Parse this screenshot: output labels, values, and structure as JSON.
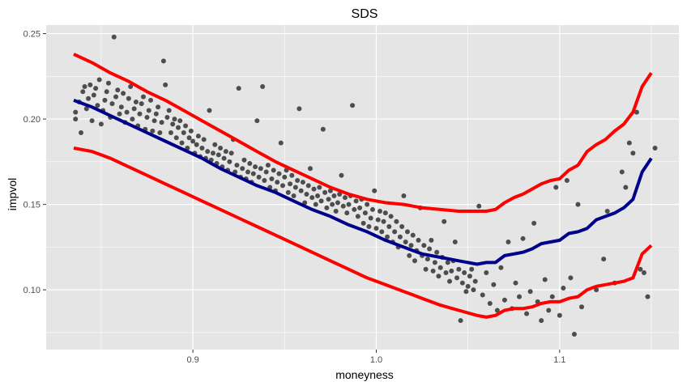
{
  "chart_data": {
    "type": "scatter",
    "title": "SDS",
    "xlabel": "moneyness",
    "ylabel": "impvol",
    "xlim": [
      0.82,
      1.165
    ],
    "ylim": [
      0.065,
      0.255
    ],
    "x_ticks": [
      0.9,
      1.0,
      1.1
    ],
    "x_tick_labels": [
      "0.9",
      "1.0",
      "1.1"
    ],
    "y_ticks": [
      0.1,
      0.15,
      0.2,
      0.25
    ],
    "y_tick_labels": [
      "0.10",
      "0.15",
      "0.20",
      "0.25"
    ],
    "grid": true,
    "legend": "none",
    "colors": {
      "panel": "#e5e5e5",
      "grid": "#ffffff",
      "points": "#4d4d4d",
      "fit": "#00008b",
      "band": "#ff0000"
    },
    "points": [
      [
        0.836,
        0.2
      ],
      [
        0.836,
        0.204
      ],
      [
        0.838,
        0.21
      ],
      [
        0.839,
        0.192
      ],
      [
        0.84,
        0.216
      ],
      [
        0.841,
        0.219
      ],
      [
        0.842,
        0.206
      ],
      [
        0.843,
        0.212
      ],
      [
        0.844,
        0.22
      ],
      [
        0.845,
        0.199
      ],
      [
        0.846,
        0.214
      ],
      [
        0.847,
        0.218
      ],
      [
        0.848,
        0.208
      ],
      [
        0.849,
        0.223
      ],
      [
        0.85,
        0.197
      ],
      [
        0.851,
        0.205
      ],
      [
        0.852,
        0.211
      ],
      [
        0.853,
        0.216
      ],
      [
        0.854,
        0.221
      ],
      [
        0.855,
        0.201
      ],
      [
        0.856,
        0.209
      ],
      [
        0.857,
        0.248
      ],
      [
        0.858,
        0.213
      ],
      [
        0.859,
        0.217
      ],
      [
        0.86,
        0.203
      ],
      [
        0.861,
        0.207
      ],
      [
        0.862,
        0.215
      ],
      [
        0.863,
        0.198
      ],
      [
        0.864,
        0.204
      ],
      [
        0.865,
        0.212
      ],
      [
        0.866,
        0.219
      ],
      [
        0.867,
        0.2
      ],
      [
        0.868,
        0.206
      ],
      [
        0.869,
        0.21
      ],
      [
        0.87,
        0.196
      ],
      [
        0.871,
        0.203
      ],
      [
        0.872,
        0.209
      ],
      [
        0.873,
        0.213
      ],
      [
        0.874,
        0.194
      ],
      [
        0.875,
        0.201
      ],
      [
        0.876,
        0.205
      ],
      [
        0.877,
        0.211
      ],
      [
        0.878,
        0.193
      ],
      [
        0.879,
        0.199
      ],
      [
        0.88,
        0.203
      ],
      [
        0.881,
        0.207
      ],
      [
        0.882,
        0.192
      ],
      [
        0.883,
        0.198
      ],
      [
        0.884,
        0.234
      ],
      [
        0.885,
        0.22
      ],
      [
        0.886,
        0.201
      ],
      [
        0.887,
        0.205
      ],
      [
        0.888,
        0.192
      ],
      [
        0.889,
        0.197
      ],
      [
        0.89,
        0.2
      ],
      [
        0.891,
        0.189
      ],
      [
        0.892,
        0.195
      ],
      [
        0.893,
        0.199
      ],
      [
        0.894,
        0.186
      ],
      [
        0.895,
        0.192
      ],
      [
        0.896,
        0.196
      ],
      [
        0.897,
        0.183
      ],
      [
        0.898,
        0.189
      ],
      [
        0.899,
        0.193
      ],
      [
        0.9,
        0.187
      ],
      [
        0.901,
        0.18
      ],
      [
        0.902,
        0.185
      ],
      [
        0.903,
        0.19
      ],
      [
        0.904,
        0.178
      ],
      [
        0.905,
        0.183
      ],
      [
        0.906,
        0.188
      ],
      [
        0.907,
        0.177
      ],
      [
        0.908,
        0.181
      ],
      [
        0.909,
        0.205
      ],
      [
        0.91,
        0.176
      ],
      [
        0.911,
        0.18
      ],
      [
        0.912,
        0.185
      ],
      [
        0.913,
        0.174
      ],
      [
        0.914,
        0.179
      ],
      [
        0.915,
        0.183
      ],
      [
        0.916,
        0.172
      ],
      [
        0.917,
        0.177
      ],
      [
        0.918,
        0.181
      ],
      [
        0.919,
        0.17
      ],
      [
        0.92,
        0.175
      ],
      [
        0.921,
        0.18
      ],
      [
        0.922,
        0.188
      ],
      [
        0.923,
        0.169
      ],
      [
        0.924,
        0.173
      ],
      [
        0.925,
        0.218
      ],
      [
        0.926,
        0.166
      ],
      [
        0.927,
        0.171
      ],
      [
        0.928,
        0.176
      ],
      [
        0.929,
        0.165
      ],
      [
        0.93,
        0.169
      ],
      [
        0.931,
        0.174
      ],
      [
        0.932,
        0.163
      ],
      [
        0.933,
        0.168
      ],
      [
        0.934,
        0.172
      ],
      [
        0.935,
        0.199
      ],
      [
        0.936,
        0.166
      ],
      [
        0.937,
        0.171
      ],
      [
        0.938,
        0.219
      ],
      [
        0.939,
        0.164
      ],
      [
        0.94,
        0.169
      ],
      [
        0.941,
        0.173
      ],
      [
        0.942,
        0.16
      ],
      [
        0.943,
        0.165
      ],
      [
        0.944,
        0.17
      ],
      [
        0.945,
        0.158
      ],
      [
        0.946,
        0.163
      ],
      [
        0.947,
        0.168
      ],
      [
        0.948,
        0.186
      ],
      [
        0.949,
        0.161
      ],
      [
        0.95,
        0.166
      ],
      [
        0.951,
        0.17
      ],
      [
        0.952,
        0.157
      ],
      [
        0.953,
        0.162
      ],
      [
        0.954,
        0.167
      ],
      [
        0.955,
        0.155
      ],
      [
        0.956,
        0.16
      ],
      [
        0.957,
        0.164
      ],
      [
        0.958,
        0.206
      ],
      [
        0.959,
        0.158
      ],
      [
        0.96,
        0.163
      ],
      [
        0.961,
        0.151
      ],
      [
        0.962,
        0.156
      ],
      [
        0.963,
        0.161
      ],
      [
        0.964,
        0.171
      ],
      [
        0.965,
        0.154
      ],
      [
        0.966,
        0.159
      ],
      [
        0.967,
        0.15
      ],
      [
        0.968,
        0.155
      ],
      [
        0.969,
        0.16
      ],
      [
        0.97,
        0.152
      ],
      [
        0.971,
        0.194
      ],
      [
        0.972,
        0.157
      ],
      [
        0.973,
        0.148
      ],
      [
        0.974,
        0.153
      ],
      [
        0.975,
        0.158
      ],
      [
        0.976,
        0.15
      ],
      [
        0.977,
        0.155
      ],
      [
        0.978,
        0.146
      ],
      [
        0.979,
        0.151
      ],
      [
        0.98,
        0.156
      ],
      [
        0.981,
        0.167
      ],
      [
        0.982,
        0.149
      ],
      [
        0.983,
        0.154
      ],
      [
        0.984,
        0.145
      ],
      [
        0.985,
        0.15
      ],
      [
        0.986,
        0.155
      ],
      [
        0.987,
        0.208
      ],
      [
        0.988,
        0.147
      ],
      [
        0.989,
        0.152
      ],
      [
        0.99,
        0.143
      ],
      [
        0.991,
        0.148
      ],
      [
        0.992,
        0.153
      ],
      [
        0.993,
        0.139
      ],
      [
        0.994,
        0.145
      ],
      [
        0.995,
        0.15
      ],
      [
        0.996,
        0.137
      ],
      [
        0.997,
        0.142
      ],
      [
        0.998,
        0.147
      ],
      [
        0.999,
        0.158
      ],
      [
        1.0,
        0.136
      ],
      [
        1.001,
        0.141
      ],
      [
        1.002,
        0.146
      ],
      [
        1.003,
        0.134
      ],
      [
        1.004,
        0.14
      ],
      [
        1.005,
        0.145
      ],
      [
        1.006,
        0.131
      ],
      [
        1.007,
        0.137
      ],
      [
        1.008,
        0.143
      ],
      [
        1.009,
        0.128
      ],
      [
        1.01,
        0.134
      ],
      [
        1.011,
        0.14
      ],
      [
        1.012,
        0.125
      ],
      [
        1.013,
        0.131
      ],
      [
        1.014,
        0.137
      ],
      [
        1.015,
        0.155
      ],
      [
        1.016,
        0.128
      ],
      [
        1.017,
        0.134
      ],
      [
        1.018,
        0.12
      ],
      [
        1.019,
        0.126
      ],
      [
        1.02,
        0.132
      ],
      [
        1.021,
        0.117
      ],
      [
        1.022,
        0.123
      ],
      [
        1.023,
        0.129
      ],
      [
        1.024,
        0.148
      ],
      [
        1.025,
        0.12
      ],
      [
        1.026,
        0.126
      ],
      [
        1.027,
        0.112
      ],
      [
        1.028,
        0.118
      ],
      [
        1.029,
        0.124
      ],
      [
        1.03,
        0.129
      ],
      [
        1.031,
        0.111
      ],
      [
        1.032,
        0.116
      ],
      [
        1.033,
        0.122
      ],
      [
        1.034,
        0.108
      ],
      [
        1.035,
        0.113
      ],
      [
        1.036,
        0.119
      ],
      [
        1.037,
        0.14
      ],
      [
        1.038,
        0.11
      ],
      [
        1.039,
        0.116
      ],
      [
        1.04,
        0.105
      ],
      [
        1.041,
        0.111
      ],
      [
        1.042,
        0.117
      ],
      [
        1.043,
        0.128
      ],
      [
        1.044,
        0.107
      ],
      [
        1.045,
        0.112
      ],
      [
        1.046,
        0.082
      ],
      [
        1.047,
        0.104
      ],
      [
        1.048,
        0.11
      ],
      [
        1.049,
        0.099
      ],
      [
        1.05,
        0.102
      ],
      [
        1.051,
        0.108
      ],
      [
        1.052,
        0.112
      ],
      [
        1.053,
        0.1
      ],
      [
        1.054,
        0.105
      ],
      [
        1.056,
        0.149
      ],
      [
        1.058,
        0.097
      ],
      [
        1.06,
        0.11
      ],
      [
        1.062,
        0.092
      ],
      [
        1.064,
        0.103
      ],
      [
        1.066,
        0.088
      ],
      [
        1.068,
        0.113
      ],
      [
        1.07,
        0.094
      ],
      [
        1.072,
        0.128
      ],
      [
        1.074,
        0.089
      ],
      [
        1.076,
        0.104
      ],
      [
        1.078,
        0.096
      ],
      [
        1.08,
        0.13
      ],
      [
        1.082,
        0.086
      ],
      [
        1.084,
        0.099
      ],
      [
        1.086,
        0.139
      ],
      [
        1.088,
        0.093
      ],
      [
        1.09,
        0.082
      ],
      [
        1.092,
        0.106
      ],
      [
        1.094,
        0.088
      ],
      [
        1.096,
        0.096
      ],
      [
        1.098,
        0.16
      ],
      [
        1.1,
        0.085
      ],
      [
        1.102,
        0.101
      ],
      [
        1.104,
        0.164
      ],
      [
        1.106,
        0.107
      ],
      [
        1.108,
        0.074
      ],
      [
        1.11,
        0.15
      ],
      [
        1.112,
        0.09
      ],
      [
        1.12,
        0.1
      ],
      [
        1.124,
        0.118
      ],
      [
        1.126,
        0.146
      ],
      [
        1.13,
        0.104
      ],
      [
        1.134,
        0.169
      ],
      [
        1.136,
        0.16
      ],
      [
        1.138,
        0.186
      ],
      [
        1.14,
        0.18
      ],
      [
        1.142,
        0.204
      ],
      [
        1.144,
        0.112
      ],
      [
        1.146,
        0.11
      ],
      [
        1.148,
        0.096
      ],
      [
        1.152,
        0.183
      ]
    ],
    "series": [
      {
        "x": [
          0.835,
          0.845,
          0.855,
          0.865,
          0.875,
          0.885,
          0.895,
          0.905,
          0.915,
          0.925,
          0.935,
          0.945,
          0.955,
          0.965,
          0.975,
          0.985,
          0.995,
          1.005,
          1.015,
          1.025,
          1.035,
          1.045,
          1.055,
          1.06,
          1.065,
          1.07,
          1.075,
          1.08,
          1.085,
          1.09,
          1.095,
          1.1,
          1.105,
          1.11,
          1.115,
          1.12,
          1.125,
          1.13,
          1.135,
          1.14,
          1.145,
          1.15
        ],
        "y": [
          0.211,
          0.207,
          0.202,
          0.197,
          0.192,
          0.187,
          0.182,
          0.177,
          0.171,
          0.166,
          0.161,
          0.157,
          0.152,
          0.147,
          0.143,
          0.138,
          0.134,
          0.129,
          0.125,
          0.121,
          0.119,
          0.117,
          0.115,
          0.116,
          0.116,
          0.12,
          0.121,
          0.122,
          0.124,
          0.127,
          0.128,
          0.129,
          0.133,
          0.134,
          0.136,
          0.141,
          0.143,
          0.145,
          0.148,
          0.153,
          0.169,
          0.177
        ],
        "color": "#00008b"
      },
      {
        "x": [
          0.835,
          0.845,
          0.855,
          0.865,
          0.875,
          0.885,
          0.895,
          0.905,
          0.915,
          0.925,
          0.935,
          0.945,
          0.955,
          0.965,
          0.975,
          0.985,
          0.995,
          1.005,
          1.015,
          1.025,
          1.035,
          1.045,
          1.055,
          1.06,
          1.065,
          1.07,
          1.075,
          1.08,
          1.085,
          1.09,
          1.095,
          1.1,
          1.105,
          1.11,
          1.115,
          1.12,
          1.125,
          1.13,
          1.135,
          1.14,
          1.145,
          1.15
        ],
        "y": [
          0.238,
          0.233,
          0.227,
          0.222,
          0.216,
          0.211,
          0.205,
          0.199,
          0.193,
          0.187,
          0.181,
          0.175,
          0.17,
          0.165,
          0.16,
          0.156,
          0.153,
          0.151,
          0.15,
          0.148,
          0.147,
          0.146,
          0.146,
          0.146,
          0.147,
          0.151,
          0.154,
          0.156,
          0.159,
          0.162,
          0.164,
          0.165,
          0.17,
          0.173,
          0.181,
          0.185,
          0.188,
          0.193,
          0.197,
          0.204,
          0.219,
          0.227
        ],
        "color": "#ff0000"
      },
      {
        "x": [
          0.835,
          0.845,
          0.855,
          0.865,
          0.875,
          0.885,
          0.895,
          0.905,
          0.915,
          0.925,
          0.935,
          0.945,
          0.955,
          0.965,
          0.975,
          0.985,
          0.995,
          1.005,
          1.015,
          1.025,
          1.035,
          1.045,
          1.055,
          1.06,
          1.065,
          1.07,
          1.075,
          1.08,
          1.085,
          1.09,
          1.095,
          1.1,
          1.105,
          1.11,
          1.115,
          1.12,
          1.125,
          1.13,
          1.135,
          1.14,
          1.145,
          1.15
        ],
        "y": [
          0.183,
          0.181,
          0.177,
          0.172,
          0.167,
          0.162,
          0.157,
          0.152,
          0.147,
          0.142,
          0.137,
          0.132,
          0.127,
          0.122,
          0.117,
          0.112,
          0.107,
          0.103,
          0.099,
          0.095,
          0.091,
          0.088,
          0.085,
          0.084,
          0.085,
          0.088,
          0.089,
          0.089,
          0.09,
          0.092,
          0.093,
          0.093,
          0.095,
          0.096,
          0.1,
          0.102,
          0.103,
          0.104,
          0.105,
          0.107,
          0.121,
          0.126
        ],
        "color": "#ff0000"
      }
    ]
  }
}
